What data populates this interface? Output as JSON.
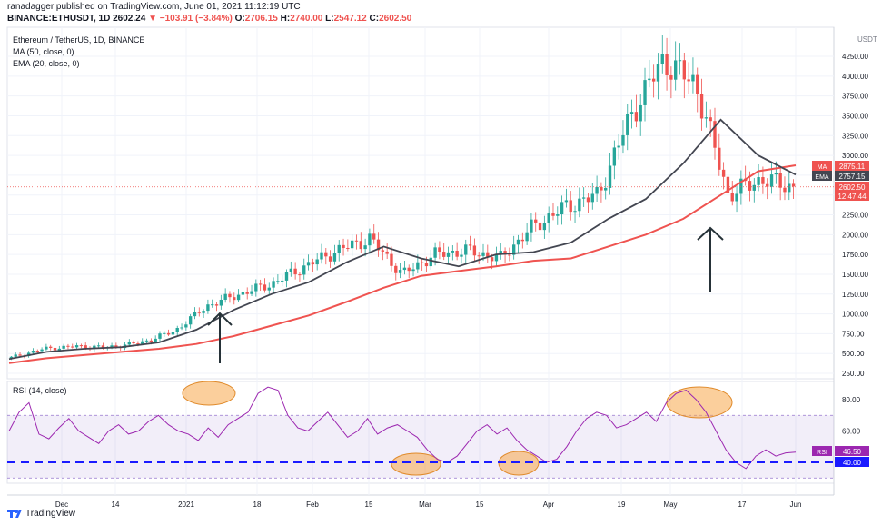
{
  "header": {
    "published_by": "ranadagger published on TradingView.com, June 01, 2021 11:12:19 UTC",
    "symbol": "BINANCE:ETHUSDT, 1D",
    "last": "2602.24",
    "change": "▼ −103.91 (−3.84%)",
    "ohlc_o_label": "O:",
    "ohlc_o": "2706.15",
    "ohlc_h_label": "H:",
    "ohlc_h": "2740.00",
    "ohlc_l_label": "L:",
    "ohlc_l": "2547.12",
    "ohlc_c_label": "C:",
    "ohlc_c": "2602.50"
  },
  "legend": {
    "title": "Ethereum / TetherUS, 1D, BINANCE",
    "ma": "MA (50, close, 0)",
    "ema": "EMA (20, close, 0)",
    "rsi": "RSI (14, close)"
  },
  "footer": {
    "brand": "TradingView"
  },
  "colors": {
    "up": "#26a69a",
    "down": "#ef5350",
    "ma": "#ef5350",
    "ema": "#434651",
    "rsi_line": "#9c27b0",
    "rsi_band": "rgba(149,117,205,0.12)",
    "support": "#1a1aff",
    "highlight": "#f7a84a",
    "arrow": "#263238"
  },
  "chart_data": [
    {
      "type": "candlestick",
      "title": "Ethereum / TetherUS, 1D, BINANCE",
      "y_unit": "USDT",
      "y_ticks": [
        250,
        500,
        750,
        1000,
        1250,
        1500,
        1750,
        2000,
        2250,
        2500,
        2750,
        3000,
        3250,
        3500,
        3750,
        4000,
        4250
      ],
      "x_tick_labels": [
        "Dec",
        "14",
        "2021",
        "18",
        "Feb",
        "15",
        "Mar",
        "15",
        "Apr",
        "19",
        "May",
        "17",
        "Jun"
      ],
      "price_labels": [
        {
          "label": "MA",
          "value": "2875.11"
        },
        {
          "label": "EMA",
          "value": "2757.15"
        },
        {
          "label": "",
          "value": "2602.50",
          "sub": "12:47:44"
        }
      ],
      "weekly_close": [
        450,
        560,
        590,
        580,
        640,
        780,
        1100,
        1250,
        1380,
        1600,
        1800,
        1950,
        1500,
        1750,
        1800,
        1700,
        2100,
        2350,
        2500,
        3500,
        4200,
        3900,
        2500,
        2700,
        2602
      ],
      "ma50": [
        380,
        440,
        480,
        520,
        560,
        620,
        720,
        850,
        980,
        1150,
        1330,
        1480,
        1540,
        1600,
        1670,
        1700,
        1850,
        2000,
        2200,
        2500,
        2800,
        2875
      ],
      "ema20": [
        430,
        520,
        560,
        580,
        640,
        800,
        1050,
        1250,
        1400,
        1650,
        1850,
        1700,
        1600,
        1750,
        1780,
        1900,
        2200,
        2450,
        2900,
        3450,
        3000,
        2757
      ]
    },
    {
      "type": "line",
      "title": "RSI (14, close)",
      "y_ticks": [
        40,
        60,
        80
      ],
      "band": [
        30,
        70
      ],
      "support_level": 40,
      "price_labels": [
        {
          "label": "RSI",
          "value": "46.50"
        },
        {
          "label": "",
          "value": "40.00"
        }
      ],
      "rsi": [
        60,
        72,
        78,
        58,
        55,
        62,
        68,
        60,
        56,
        52,
        60,
        64,
        58,
        60,
        66,
        70,
        64,
        60,
        58,
        54,
        62,
        56,
        64,
        68,
        72,
        84,
        88,
        86,
        70,
        62,
        60,
        66,
        72,
        64,
        56,
        60,
        68,
        58,
        62,
        64,
        60,
        56,
        48,
        42,
        40,
        44,
        52,
        60,
        64,
        58,
        62,
        54,
        48,
        44,
        40,
        42,
        50,
        60,
        68,
        72,
        70,
        62,
        64,
        68,
        72,
        66,
        78,
        84,
        86,
        80,
        72,
        60,
        48,
        40,
        36,
        44,
        48,
        44,
        46,
        46.5
      ]
    }
  ]
}
